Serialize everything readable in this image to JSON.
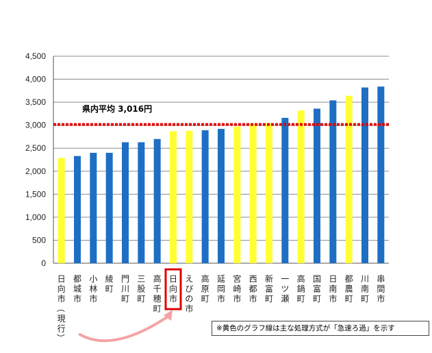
{
  "chart_data": {
    "type": "bar",
    "ylim": [
      0,
      4500
    ],
    "y_ticks": [
      "0",
      "500",
      "1,000",
      "1,500",
      "2,000",
      "2,500",
      "3,000",
      "3,500",
      "4,000",
      "4,500"
    ],
    "categories": [
      "日向市（現行）",
      "都城市",
      "小林市",
      "綾町",
      "門川町",
      "三股町",
      "高千穂町",
      "日向市",
      "えびの市",
      "高原町",
      "延岡市",
      "宮崎市",
      "西都市",
      "新富町",
      "一ツ瀬",
      "高鍋町",
      "国富町",
      "日南市",
      "都農町",
      "川南町",
      "串間市"
    ],
    "category_labels": [
      [
        "日",
        "向",
        "市",
        "（",
        "現",
        "行",
        "）"
      ],
      [
        "都",
        "城",
        "市"
      ],
      [
        "小",
        "林",
        "市"
      ],
      [
        "綾",
        "町"
      ],
      [
        "門",
        "川",
        "町"
      ],
      [
        "三",
        "股",
        "町"
      ],
      [
        "高",
        "千",
        "穂",
        "町"
      ],
      [
        "日",
        "向",
        "市"
      ],
      [
        "え",
        "び",
        "の",
        "市"
      ],
      [
        "高",
        "原",
        "町"
      ],
      [
        "延",
        "岡",
        "市"
      ],
      [
        "宮",
        "崎",
        "市"
      ],
      [
        "西",
        "都",
        "市"
      ],
      [
        "新",
        "富",
        "町"
      ],
      [
        "一",
        "ツ",
        "瀬"
      ],
      [
        "高",
        "鍋",
        "町"
      ],
      [
        "国",
        "富",
        "町"
      ],
      [
        "日",
        "南",
        "市"
      ],
      [
        "都",
        "農",
        "町"
      ],
      [
        "川",
        "南",
        "町"
      ],
      [
        "串",
        "間",
        "市"
      ]
    ],
    "values": [
      2290,
      2330,
      2400,
      2400,
      2630,
      2630,
      2700,
      2870,
      2880,
      2890,
      2920,
      2970,
      3030,
      3040,
      3160,
      3320,
      3360,
      3540,
      3640,
      3820,
      3840
    ],
    "bar_colors": [
      "#FFFF33",
      "#1E6FC4",
      "#1E6FC4",
      "#1E6FC4",
      "#1E6FC4",
      "#1E6FC4",
      "#1E6FC4",
      "#FFFF33",
      "#FFFF33",
      "#1E6FC4",
      "#1E6FC4",
      "#FFFF33",
      "#FFFF33",
      "#FFFF33",
      "#1E6FC4",
      "#FFFF33",
      "#1E6FC4",
      "#1E6FC4",
      "#FFFF33",
      "#1E6FC4",
      "#1E6FC4"
    ],
    "highlighted_category_index": 7,
    "average": {
      "value": 3016,
      "label": "県内平均 3,016円",
      "color": "#E00000"
    },
    "colors": {
      "yellow": "#FFFF33",
      "blue": "#1E6FC4",
      "grid": "#8C8C8C",
      "highlight_box": "#E00000",
      "arrow": "#F4A3A3"
    },
    "grid": true,
    "annotation": "※黄色のグラフ線は主な処理方式が「急速ろ過」を示す"
  }
}
